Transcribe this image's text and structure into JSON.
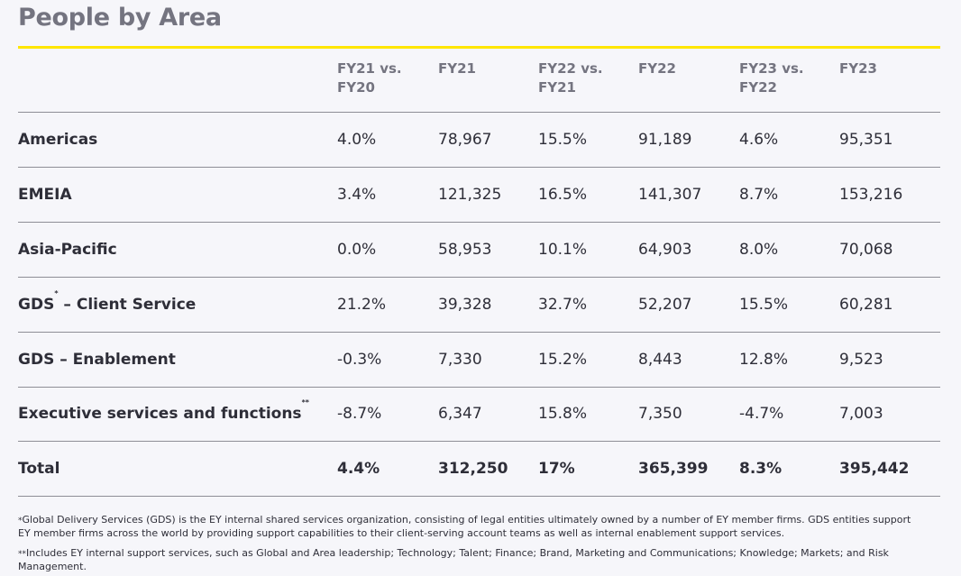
{
  "title": "People by Area",
  "columns": [
    "FY21 vs.\nFY20",
    "FY21",
    "FY22 vs.\nFY21",
    "FY22",
    "FY23 vs.\nFY22",
    "FY23"
  ],
  "rows": [
    {
      "label": "Americas",
      "sup": "",
      "values": [
        "4.0%",
        "78,967",
        "15.5%",
        "91,189",
        "4.6%",
        "95,351"
      ]
    },
    {
      "label": "EMEIA",
      "sup": "",
      "values": [
        "3.4%",
        "121,325",
        "16.5%",
        "141,307",
        "8.7%",
        "153,216"
      ]
    },
    {
      "label": "Asia-Pacific",
      "sup": "",
      "values": [
        "0.0%",
        "58,953",
        "10.1%",
        "64,903",
        "8.0%",
        "70,068"
      ]
    },
    {
      "label_pre": "GDS",
      "sup": "*",
      "label_post": " – Client Service",
      "values": [
        "21.2%",
        "39,328",
        "32.7%",
        "52,207",
        "15.5%",
        "60,281"
      ]
    },
    {
      "label": "GDS – Enablement",
      "sup": "",
      "values": [
        "-0.3%",
        "7,330",
        "15.2%",
        "8,443",
        "12.8%",
        "9,523"
      ]
    },
    {
      "label": "Executive services and functions",
      "sup": "**",
      "values": [
        "-8.7%",
        "6,347",
        "15.8%",
        "7,350",
        "-4.7%",
        "7,003"
      ]
    },
    {
      "label": "Total",
      "sup": "",
      "values": [
        "4.4%",
        "312,250",
        "17%",
        "365,399",
        "8.3%",
        "395,442"
      ]
    }
  ],
  "footnotes": [
    {
      "mark": "*",
      "text": "Global Delivery Services (GDS) is the EY internal shared services organization, consisting of legal entities ultimately owned by a number of EY member firms. GDS entities support EY member firms across the world by providing support capabilities to their client-serving account teams as well as internal enablement support services."
    },
    {
      "mark": "**",
      "text": "Includes EY internal support services, such as Global and Area leadership; Technology; Talent; Finance; Brand, Marketing and Communications; Knowledge; Markets; and Risk Management."
    }
  ],
  "colors": {
    "accent": "#ffe600",
    "heading": "#747480",
    "text": "#2e2e38",
    "rule": "#8e8e96",
    "background": "#f6f6fa"
  }
}
